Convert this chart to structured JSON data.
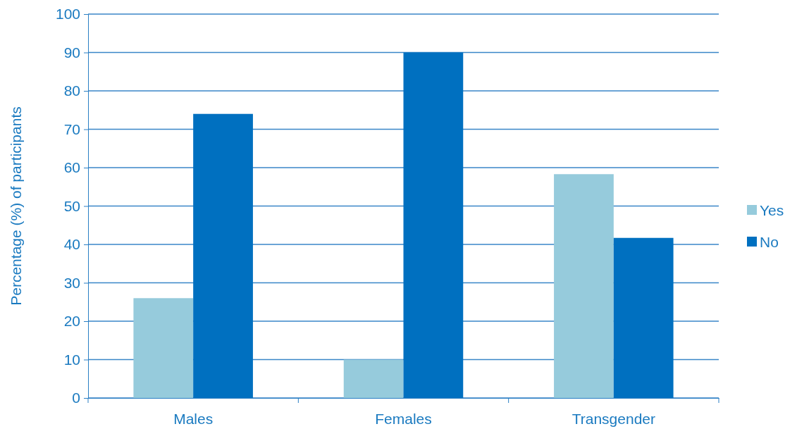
{
  "chart_data": {
    "type": "bar",
    "ylabel": "Percentage (%) of participants",
    "categories": [
      "Males",
      "Females",
      "Transgender"
    ],
    "series": [
      {
        "name": "Yes",
        "color": "#96cbdc",
        "values": [
          26,
          10,
          58.3
        ]
      },
      {
        "name": "No",
        "color": "#0070c0",
        "values": [
          74,
          90,
          41.7
        ]
      }
    ],
    "ylim": [
      0,
      100
    ],
    "yticks": [
      0,
      10,
      20,
      30,
      40,
      50,
      60,
      70,
      80,
      90,
      100
    ],
    "grid": "y",
    "legend": "right"
  }
}
